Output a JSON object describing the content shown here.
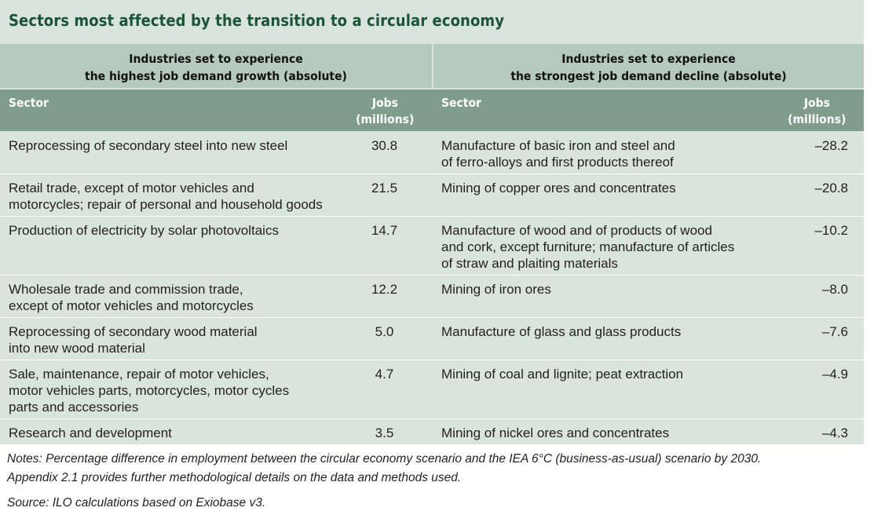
{
  "title": "Sectors most affected by the transition to a circular economy",
  "groups": {
    "left": {
      "line1": "Industries set to experience",
      "line2": "the highest job demand growth (absolute)"
    },
    "right": {
      "line1": "Industries set to experience",
      "line2": "the strongest job demand decline (absolute)"
    }
  },
  "columns": {
    "sector": "Sector",
    "jobs_line1": "Jobs",
    "jobs_line2": "(millions)"
  },
  "rows": [
    {
      "growth_sector": "Reprocessing of secondary steel into new steel",
      "growth_jobs": "30.8",
      "decline_sector": "Manufacture of basic iron and steel and\nof ferro-alloys and first products thereof",
      "decline_jobs": "–28.2"
    },
    {
      "growth_sector": "Retail trade, except of motor vehicles and\nmotorcycles; repair of personal and household goods",
      "growth_jobs": "21.5",
      "decline_sector": "Mining of copper ores and concentrates",
      "decline_jobs": "–20.8"
    },
    {
      "growth_sector": "Production of electricity by solar photovoltaics",
      "growth_jobs": "14.7",
      "decline_sector": "Manufacture of wood and of products of wood\nand cork, except furniture; manufacture of articles\nof straw and plaiting materials",
      "decline_jobs": "–10.2"
    },
    {
      "growth_sector": "Wholesale trade and commission trade,\nexcept of motor vehicles and motorcycles",
      "growth_jobs": "12.2",
      "decline_sector": "Mining of iron ores",
      "decline_jobs": "–8.0"
    },
    {
      "growth_sector": "Reprocessing of secondary wood material\ninto new wood material",
      "growth_jobs": "5.0",
      "decline_sector": "Manufacture of glass and glass products",
      "decline_jobs": "–7.6"
    },
    {
      "growth_sector": "Sale, maintenance, repair of motor vehicles,\nmotor vehicles parts, motorcycles, motor cycles\nparts and accessories",
      "growth_jobs": "4.7",
      "decline_sector": "Mining of coal and lignite; peat extraction",
      "decline_jobs": "–4.9"
    },
    {
      "growth_sector": "Research and development",
      "growth_jobs": "3.5",
      "decline_sector": "Mining of nickel ores and concentrates",
      "decline_jobs": "–4.3"
    }
  ],
  "notes_line1": "Notes: Percentage difference in employment between the circular economy scenario and the IEA 6°C (business-as-usual) scenario by 2030.",
  "notes_line2": "Appendix 2.1 provides further methodological details on the data and methods used.",
  "source": "Source: ILO calculations based on Exiobase v3.",
  "colors": {
    "panel": "#d9e4de",
    "group_header": "#b5c9bd",
    "column_header": "#7f9c8c",
    "title": "#1d5437"
  }
}
